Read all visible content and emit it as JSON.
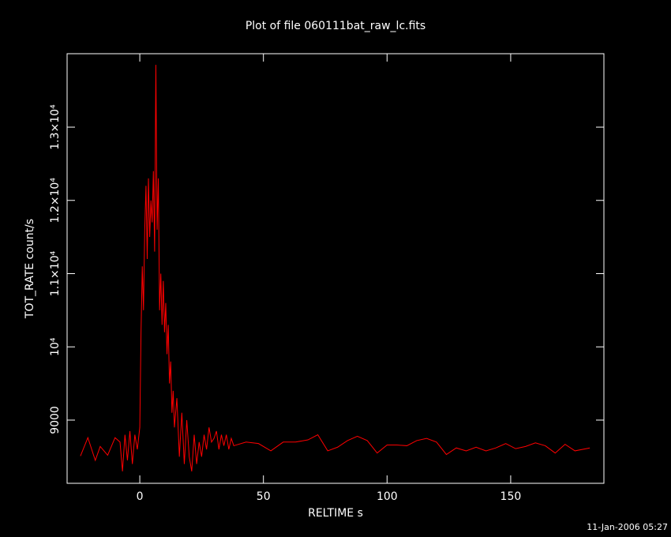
{
  "chart_data": {
    "type": "line",
    "title": "Plot of file 060111bat_raw_lc.fits",
    "xlabel": "RELTIME  s",
    "ylabel": "TOT_RATE  count/s",
    "footer": "11-Jan-2006 05:27",
    "x": [
      -24,
      -21,
      -18,
      -16,
      -13,
      -10,
      -8,
      -7,
      -6,
      -5,
      -4,
      -3,
      -2,
      -1,
      0,
      0.5,
      1,
      1.5,
      2,
      2.5,
      3,
      3.5,
      4,
      4.5,
      5,
      5.5,
      6,
      6.5,
      7,
      7.5,
      8,
      8.5,
      9,
      9.5,
      10,
      10.5,
      11,
      11.5,
      12,
      12.5,
      13,
      13.5,
      14,
      15,
      16,
      17,
      18,
      19,
      20,
      21,
      22,
      23,
      24,
      25,
      26,
      27,
      28,
      29,
      30,
      31,
      32,
      33,
      34,
      35,
      36,
      37,
      38,
      43,
      48,
      53,
      58,
      63,
      68,
      72,
      76,
      80,
      84,
      88,
      92,
      96,
      100,
      104,
      108,
      112,
      116,
      120,
      124,
      128,
      132,
      136,
      140,
      144,
      148,
      152,
      156,
      160,
      164,
      168,
      172,
      176,
      182
    ],
    "series": [
      {
        "name": "TOT_RATE",
        "color": "#ff0000",
        "values": [
          8510,
          8760,
          8450,
          8640,
          8520,
          8760,
          8700,
          8300,
          8800,
          8450,
          8850,
          8400,
          8800,
          8600,
          8900,
          10200,
          11100,
          10500,
          11600,
          12200,
          11200,
          12300,
          11500,
          12000,
          11700,
          12400,
          11300,
          13850,
          11600,
          12300,
          10500,
          11000,
          10300,
          10900,
          10200,
          10600,
          9900,
          10300,
          9500,
          9800,
          9100,
          9400,
          8900,
          9300,
          8500,
          9100,
          8400,
          9000,
          8500,
          8300,
          8800,
          8400,
          8700,
          8500,
          8800,
          8600,
          8900,
          8700,
          8750,
          8850,
          8600,
          8800,
          8650,
          8800,
          8600,
          8750,
          8650,
          8700,
          8680,
          8580,
          8700,
          8700,
          8730,
          8800,
          8580,
          8630,
          8720,
          8780,
          8720,
          8550,
          8660,
          8660,
          8650,
          8720,
          8750,
          8700,
          8530,
          8620,
          8580,
          8630,
          8580,
          8620,
          8680,
          8610,
          8640,
          8690,
          8650,
          8550,
          8670,
          8580,
          8620
        ]
      }
    ],
    "xlim": [
      -29.4,
      187.7
    ],
    "ylim": [
      8137,
      14003
    ],
    "xticks": [
      0,
      50,
      100,
      150
    ],
    "yticks": [
      9000,
      {
        "value": 10000,
        "label": "10⁴"
      },
      {
        "value": 11000,
        "label": "1.1×10⁴"
      },
      {
        "value": 12000,
        "label": "1.2×10⁴"
      },
      {
        "value": 13000,
        "label": "1.3×10⁴"
      }
    ],
    "background": "#000000"
  }
}
